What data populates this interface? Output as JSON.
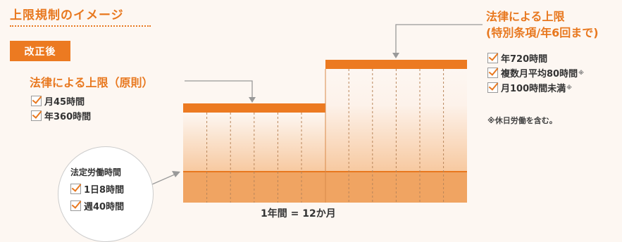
{
  "title": "上限規制のイメージ",
  "badge": "改正後",
  "left_block": {
    "heading": "法律による上限（原則）",
    "items": [
      "月45時間",
      "年360時間"
    ]
  },
  "right_block": {
    "heading_line1": "法律による上限",
    "heading_line2": "(特別条項/年6回まで)",
    "items": [
      {
        "text": "年720時間",
        "mark": ""
      },
      {
        "text": "複数月平均80時間",
        "mark": "※"
      },
      {
        "text": "月100時間未満",
        "mark": "※"
      }
    ],
    "note": "※休日労働を含む。"
  },
  "circle": {
    "title": "法定労働時間",
    "items": [
      "1日8時間",
      "週40時間"
    ]
  },
  "x_axis_label": "1年間 = 12か月",
  "chart_data": {
    "type": "diagram",
    "months": 12,
    "segments": [
      {
        "name": "法定労働時間",
        "months_from": 1,
        "months_to": 12
      },
      {
        "name": "法律による上限（原則）",
        "months_from": 1,
        "months_to": 6
      },
      {
        "name": "法律による上限（特別条項/年6回まで）",
        "months_from": 7,
        "months_to": 12
      }
    ]
  },
  "colors": {
    "accent": "#ec7a21",
    "base_fill": "#f0a462",
    "text": "#333333"
  }
}
